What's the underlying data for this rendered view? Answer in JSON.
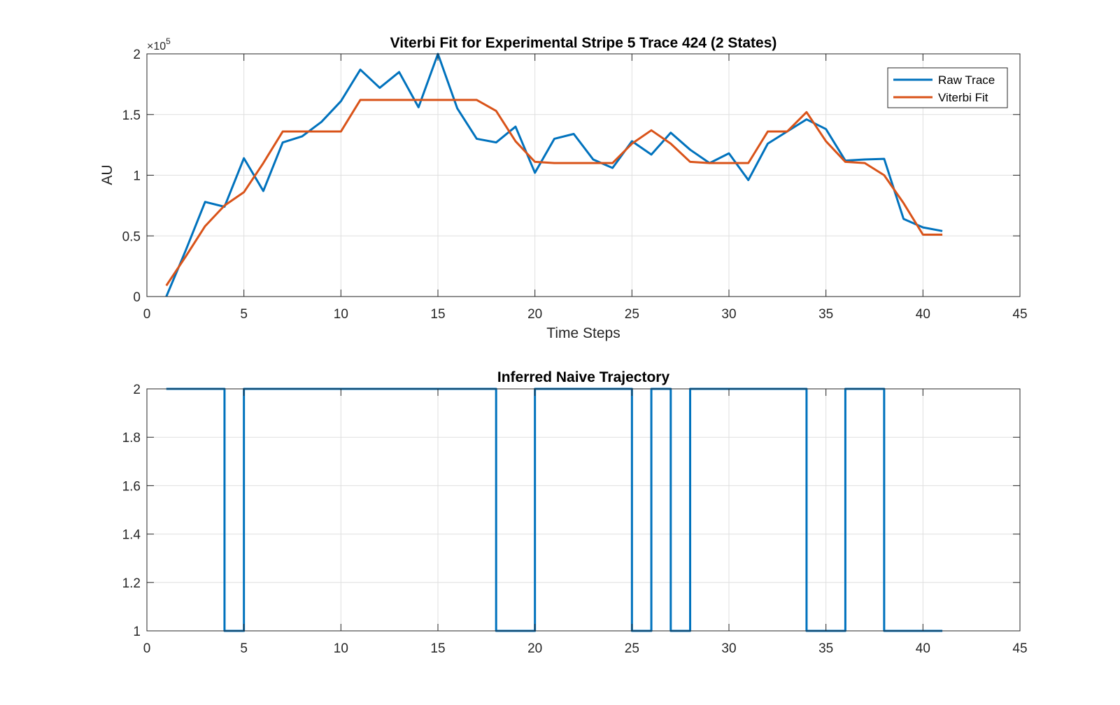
{
  "chart_data": [
    {
      "type": "line",
      "title": "Viterbi Fit for Experimental Stripe 5 Trace 424 (2 States)",
      "xlabel": "Time Steps",
      "ylabel": "AU",
      "y_exponent_label": "×10",
      "y_exponent_power": "5",
      "xlim": [
        0,
        45
      ],
      "ylim": [
        0,
        200000
      ],
      "xticks": [
        0,
        5,
        10,
        15,
        20,
        25,
        30,
        35,
        40,
        45
      ],
      "yticks": [
        0,
        50000,
        100000,
        150000,
        200000
      ],
      "ytick_labels": [
        "0",
        "0.5",
        "1",
        "1.5",
        "2"
      ],
      "grid": true,
      "legend_position": "top-right",
      "series": [
        {
          "name": "Raw Trace",
          "color": "#0072BD",
          "x": [
            1,
            2,
            3,
            4,
            5,
            6,
            7,
            8,
            9,
            10,
            11,
            12,
            13,
            14,
            15,
            16,
            17,
            18,
            19,
            20,
            21,
            22,
            23,
            24,
            25,
            26,
            27,
            28,
            29,
            30,
            31,
            32,
            33,
            34,
            35,
            36,
            37,
            38,
            39,
            40,
            41
          ],
          "values": [
            0,
            38000,
            78000,
            74000,
            114000,
            87000,
            127000,
            132000,
            144000,
            161000,
            187000,
            172000,
            185000,
            156000,
            200000,
            155000,
            130000,
            127000,
            140000,
            102000,
            130000,
            134000,
            113000,
            106000,
            128000,
            117000,
            135000,
            121000,
            110000,
            118000,
            96000,
            126000,
            136000,
            146000,
            138000,
            112000,
            113000,
            113500,
            64000,
            57000,
            54000
          ]
        },
        {
          "name": "Viterbi Fit",
          "color": "#D95319",
          "x": [
            1,
            2,
            3,
            4,
            5,
            6,
            7,
            8,
            9,
            10,
            11,
            12,
            13,
            14,
            15,
            16,
            17,
            18,
            19,
            20,
            21,
            22,
            23,
            24,
            25,
            26,
            27,
            28,
            29,
            30,
            31,
            32,
            33,
            34,
            35,
            36,
            37,
            38,
            39,
            40,
            41
          ],
          "values": [
            9000,
            33000,
            58000,
            75000,
            86000,
            110000,
            136000,
            136000,
            136000,
            136000,
            162000,
            162000,
            162000,
            162000,
            162000,
            162000,
            162000,
            153000,
            128000,
            111000,
            110000,
            110000,
            110000,
            110000,
            126000,
            137000,
            126000,
            111000,
            110000,
            110000,
            110000,
            136000,
            136000,
            152000,
            128000,
            111000,
            110000,
            100000,
            77000,
            51000,
            51000
          ]
        }
      ]
    },
    {
      "type": "line",
      "title": "Inferred Naive Trajectory",
      "xlabel": "",
      "ylabel": "",
      "xlim": [
        0,
        45
      ],
      "ylim": [
        1,
        2
      ],
      "xticks": [
        0,
        5,
        10,
        15,
        20,
        25,
        30,
        35,
        40,
        45
      ],
      "yticks": [
        1,
        1.2,
        1.4,
        1.6,
        1.8,
        2
      ],
      "ytick_labels": [
        "1",
        "1.2",
        "1.4",
        "1.6",
        "1.8",
        "2"
      ],
      "grid": true,
      "step": true,
      "series": [
        {
          "color": "#0072BD",
          "x": [
            1,
            2,
            3,
            4,
            5,
            6,
            7,
            8,
            9,
            10,
            11,
            12,
            13,
            14,
            15,
            16,
            17,
            18,
            19,
            20,
            21,
            22,
            23,
            24,
            25,
            26,
            27,
            28,
            29,
            30,
            31,
            32,
            33,
            34,
            35,
            36,
            37,
            38,
            39,
            40,
            41
          ],
          "values": [
            2,
            2,
            2,
            1,
            2,
            2,
            2,
            2,
            2,
            2,
            2,
            2,
            2,
            2,
            2,
            2,
            2,
            1,
            1,
            2,
            2,
            2,
            2,
            2,
            1,
            2,
            1,
            2,
            2,
            2,
            2,
            2,
            2,
            1,
            1,
            2,
            2,
            1,
            1,
            1,
            1
          ]
        }
      ]
    }
  ]
}
